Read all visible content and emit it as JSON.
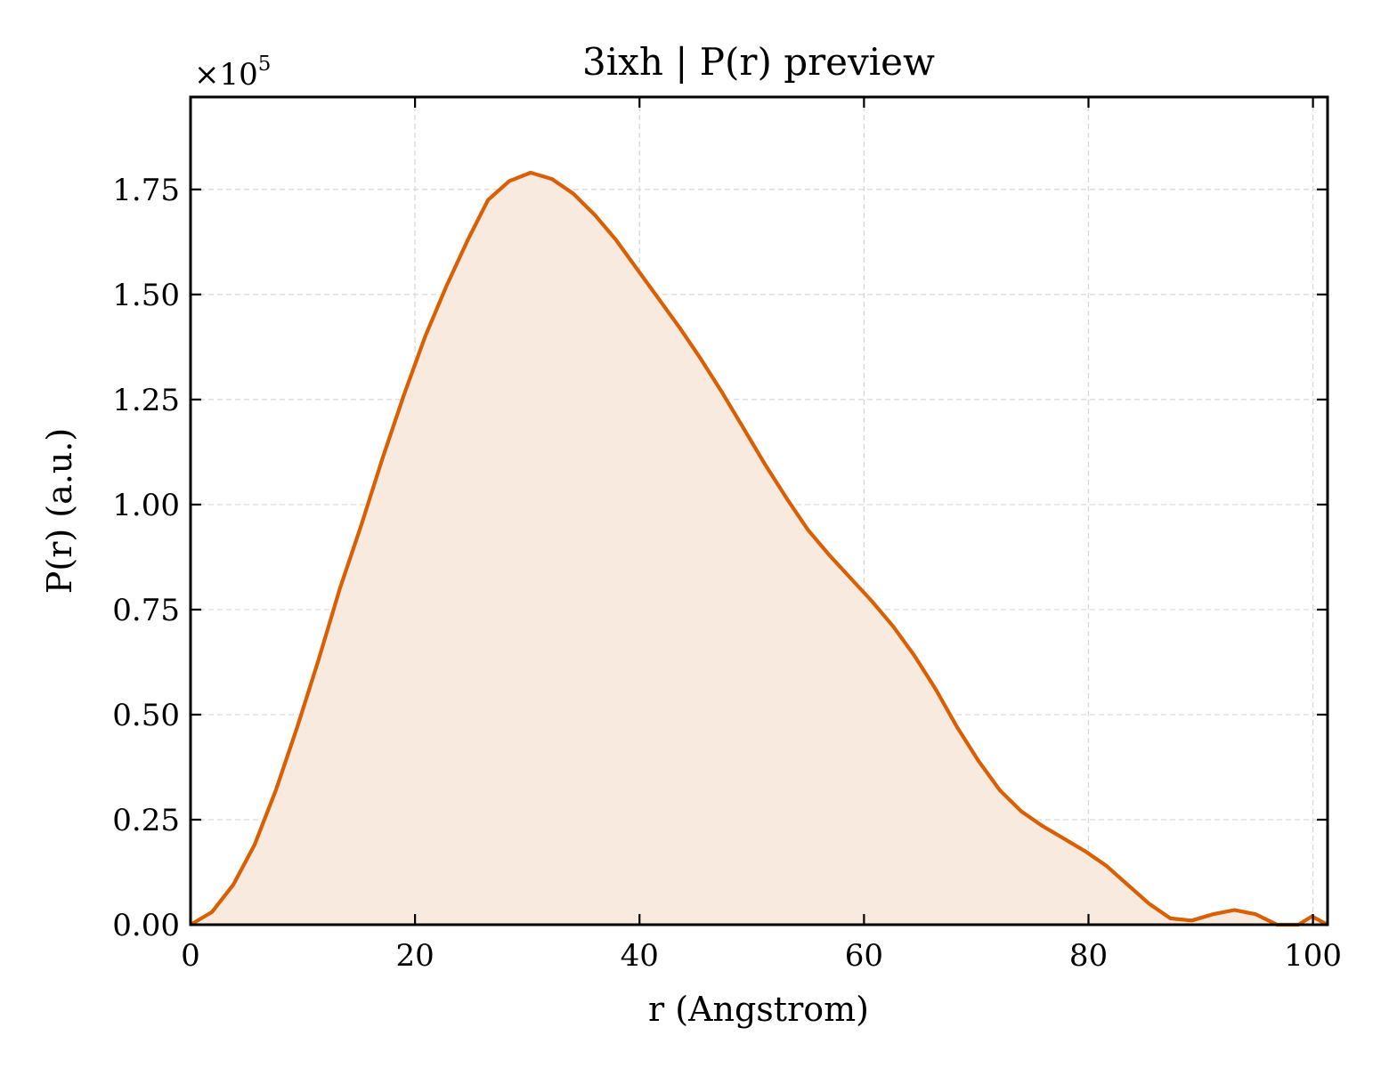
{
  "chart_data": {
    "type": "area",
    "title": "3ixh | P(r) preview",
    "xlabel": "r (Angstrom)",
    "ylabel": "P(r) (a.u.)",
    "y_multiplier": {
      "base": "×10",
      "exponent": "5"
    },
    "xlim": [
      0,
      101.3
    ],
    "ylim": [
      0,
      1.97
    ],
    "xticks": [
      0,
      20,
      40,
      60,
      80,
      100
    ],
    "xtick_labels": [
      "0",
      "20",
      "40",
      "60",
      "80",
      "100"
    ],
    "yticks": [
      0,
      0.25,
      0.5,
      0.75,
      1.0,
      1.25,
      1.5,
      1.75
    ],
    "ytick_labels": [
      "0.00",
      "0.25",
      "0.50",
      "0.75",
      "1.00",
      "1.25",
      "1.50",
      "1.75"
    ],
    "grid": true,
    "line_color": "#d95f02",
    "fill_color": "#f8eadf",
    "series": [
      {
        "x": [
          0,
          1.9,
          3.8,
          5.7,
          7.6,
          9.5,
          11.4,
          13.3,
          15.2,
          17.1,
          19.0,
          20.9,
          22.8,
          24.7,
          26.5,
          28.4,
          30.3,
          32.2,
          34.1,
          36.0,
          37.9,
          39.8,
          41.7,
          43.6,
          45.5,
          47.4,
          49.3,
          51.2,
          53.1,
          55.0,
          56.9,
          58.8,
          60.7,
          62.6,
          64.5,
          66.4,
          68.3,
          70.2,
          72.1,
          74.0,
          75.9,
          77.8,
          79.7,
          81.6,
          83.5,
          85.4,
          87.3,
          89.2,
          91.1,
          93.0,
          94.9,
          96.8,
          98.7,
          99.9,
          101.3
        ],
        "y": [
          0.0,
          0.03,
          0.095,
          0.19,
          0.32,
          0.47,
          0.63,
          0.8,
          0.95,
          1.11,
          1.26,
          1.4,
          1.52,
          1.63,
          1.725,
          1.77,
          1.79,
          1.775,
          1.74,
          1.69,
          1.63,
          1.56,
          1.49,
          1.42,
          1.345,
          1.265,
          1.18,
          1.095,
          1.015,
          0.94,
          0.88,
          0.825,
          0.77,
          0.71,
          0.64,
          0.56,
          0.47,
          0.39,
          0.32,
          0.27,
          0.235,
          0.205,
          0.175,
          0.14,
          0.095,
          0.05,
          0.015,
          0.01,
          0.025,
          0.035,
          0.025,
          0.0,
          0.0,
          0.02,
          0.0
        ]
      }
    ]
  }
}
